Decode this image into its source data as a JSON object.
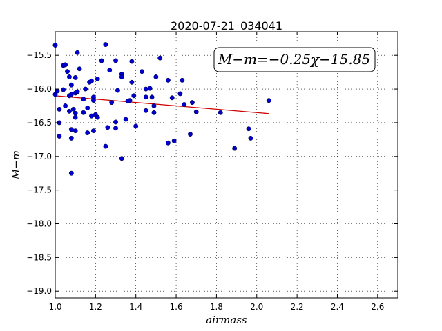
{
  "chart_data": {
    "type": "scatter",
    "title": "2020-07-21_034041",
    "xlabel": "airmass",
    "ylabel": "M−m",
    "xlim": [
      1.0,
      2.7
    ],
    "ylim": [
      -15.15,
      -19.1
    ],
    "y_inverted": true,
    "grid": true,
    "grid_style": "dotted",
    "xticks": [
      1.0,
      1.2,
      1.4,
      1.6,
      1.8,
      2.0,
      2.2,
      2.4,
      2.6
    ],
    "xtick_labels": [
      "1.0",
      "1.2",
      "1.4",
      "1.6",
      "1.8",
      "2.0",
      "2.2",
      "2.4",
      "2.6"
    ],
    "yticks": [
      -15.5,
      -16.0,
      -16.5,
      -17.0,
      -17.5,
      -18.0,
      -18.5,
      -19.0
    ],
    "ytick_labels": [
      "−15.5",
      "−16.0",
      "−16.5",
      "−17.0",
      "−17.5",
      "−18.0",
      "−18.5",
      "−19.0"
    ],
    "annotation": "M−m=−0.25χ−15.85",
    "annotation_position": "top-right",
    "point_color": "#0000cc",
    "line_color": "#cc0000",
    "fit": {
      "slope": -0.25,
      "intercept": -15.85,
      "x_range": [
        1.0,
        2.06
      ]
    },
    "points": [
      {
        "x": 1.0,
        "y": -15.35
      },
      {
        "x": 1.0,
        "y": -16.08
      },
      {
        "x": 1.01,
        "y": -16.03
      },
      {
        "x": 1.02,
        "y": -16.3
      },
      {
        "x": 1.02,
        "y": -16.5
      },
      {
        "x": 1.02,
        "y": -16.7
      },
      {
        "x": 1.04,
        "y": -16.01
      },
      {
        "x": 1.04,
        "y": -15.65
      },
      {
        "x": 1.05,
        "y": -15.64
      },
      {
        "x": 1.05,
        "y": -16.25
      },
      {
        "x": 1.06,
        "y": -15.74
      },
      {
        "x": 1.07,
        "y": -15.82
      },
      {
        "x": 1.07,
        "y": -16.1
      },
      {
        "x": 1.07,
        "y": -16.33
      },
      {
        "x": 1.08,
        "y": -15.94
      },
      {
        "x": 1.08,
        "y": -16.08
      },
      {
        "x": 1.08,
        "y": -16.6
      },
      {
        "x": 1.08,
        "y": -16.73
      },
      {
        "x": 1.08,
        "y": -17.25
      },
      {
        "x": 1.09,
        "y": -16.3
      },
      {
        "x": 1.1,
        "y": -16.06
      },
      {
        "x": 1.1,
        "y": -16.36
      },
      {
        "x": 1.1,
        "y": -16.62
      },
      {
        "x": 1.1,
        "y": -15.83
      },
      {
        "x": 1.1,
        "y": -16.42
      },
      {
        "x": 1.11,
        "y": -15.46
      },
      {
        "x": 1.11,
        "y": -16.04
      },
      {
        "x": 1.12,
        "y": -15.7
      },
      {
        "x": 1.14,
        "y": -16.15
      },
      {
        "x": 1.14,
        "y": -16.35
      },
      {
        "x": 1.15,
        "y": -16.0
      },
      {
        "x": 1.16,
        "y": -16.28
      },
      {
        "x": 1.16,
        "y": -16.65
      },
      {
        "x": 1.17,
        "y": -15.9
      },
      {
        "x": 1.18,
        "y": -15.88
      },
      {
        "x": 1.18,
        "y": -16.4
      },
      {
        "x": 1.19,
        "y": -16.12
      },
      {
        "x": 1.19,
        "y": -16.17
      },
      {
        "x": 1.19,
        "y": -16.62
      },
      {
        "x": 1.2,
        "y": -16.38
      },
      {
        "x": 1.21,
        "y": -16.42
      },
      {
        "x": 1.21,
        "y": -15.85
      },
      {
        "x": 1.23,
        "y": -15.58
      },
      {
        "x": 1.25,
        "y": -15.34
      },
      {
        "x": 1.25,
        "y": -16.85
      },
      {
        "x": 1.26,
        "y": -16.57
      },
      {
        "x": 1.27,
        "y": -15.72
      },
      {
        "x": 1.28,
        "y": -16.2
      },
      {
        "x": 1.3,
        "y": -15.58
      },
      {
        "x": 1.3,
        "y": -16.49
      },
      {
        "x": 1.3,
        "y": -16.58
      },
      {
        "x": 1.31,
        "y": -16.02
      },
      {
        "x": 1.33,
        "y": -15.78
      },
      {
        "x": 1.33,
        "y": -15.82
      },
      {
        "x": 1.33,
        "y": -17.03
      },
      {
        "x": 1.35,
        "y": -16.45
      },
      {
        "x": 1.36,
        "y": -16.18
      },
      {
        "x": 1.37,
        "y": -16.17
      },
      {
        "x": 1.38,
        "y": -15.59
      },
      {
        "x": 1.38,
        "y": -15.9
      },
      {
        "x": 1.39,
        "y": -16.1
      },
      {
        "x": 1.4,
        "y": -16.55
      },
      {
        "x": 1.43,
        "y": -15.74
      },
      {
        "x": 1.45,
        "y": -16.0
      },
      {
        "x": 1.45,
        "y": -16.12
      },
      {
        "x": 1.45,
        "y": -16.32
      },
      {
        "x": 1.47,
        "y": -15.99
      },
      {
        "x": 1.48,
        "y": -16.12
      },
      {
        "x": 1.49,
        "y": -16.25
      },
      {
        "x": 1.49,
        "y": -16.35
      },
      {
        "x": 1.5,
        "y": -15.82
      },
      {
        "x": 1.52,
        "y": -15.54
      },
      {
        "x": 1.56,
        "y": -15.87
      },
      {
        "x": 1.56,
        "y": -16.8
      },
      {
        "x": 1.58,
        "y": -16.13
      },
      {
        "x": 1.59,
        "y": -16.77
      },
      {
        "x": 1.62,
        "y": -16.07
      },
      {
        "x": 1.63,
        "y": -15.87
      },
      {
        "x": 1.64,
        "y": -16.23
      },
      {
        "x": 1.67,
        "y": -16.67
      },
      {
        "x": 1.68,
        "y": -16.2
      },
      {
        "x": 1.7,
        "y": -16.34
      },
      {
        "x": 1.82,
        "y": -16.35
      },
      {
        "x": 1.89,
        "y": -16.88
      },
      {
        "x": 1.96,
        "y": -16.59
      },
      {
        "x": 1.97,
        "y": -16.73
      },
      {
        "x": 2.06,
        "y": -16.17
      }
    ]
  }
}
